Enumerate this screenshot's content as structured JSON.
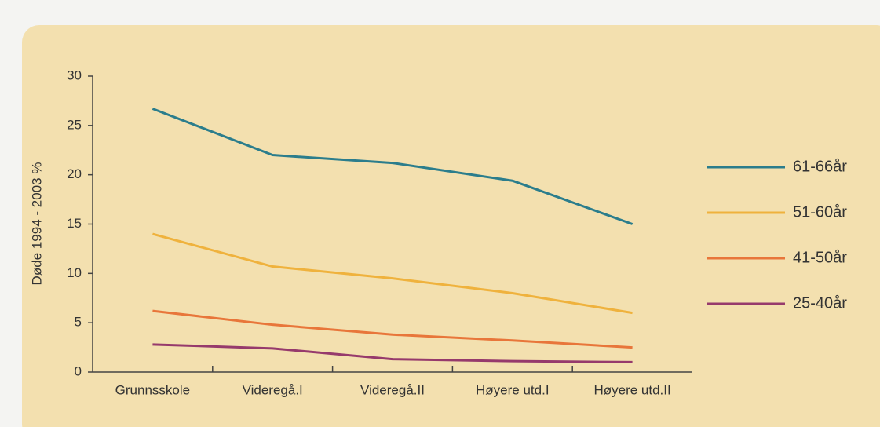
{
  "chart_data": {
    "type": "line",
    "y_label": "Døde 1994 - 2003 %",
    "categories": [
      "Grunnsskole",
      "Videregå.I",
      "Videregå.II",
      "Høyere utd.I",
      "Høyere utd.II"
    ],
    "series": [
      {
        "name": "61-66år",
        "color": "#2b7d8c",
        "values": [
          26.7,
          22.0,
          21.2,
          19.4,
          15.0
        ]
      },
      {
        "name": "51-60år",
        "color": "#efb23d",
        "values": [
          14.0,
          10.7,
          9.5,
          8.0,
          6.0
        ]
      },
      {
        "name": "41-50år",
        "color": "#e8763a",
        "values": [
          6.2,
          4.8,
          3.8,
          3.2,
          2.5
        ]
      },
      {
        "name": "25-40år",
        "color": "#963a6c",
        "values": [
          2.8,
          2.4,
          1.3,
          1.1,
          1.0
        ]
      }
    ],
    "ylim": [
      0,
      30
    ],
    "yticks": [
      0,
      5,
      10,
      15,
      20,
      25,
      30
    ],
    "grid": false,
    "legend": "right"
  }
}
